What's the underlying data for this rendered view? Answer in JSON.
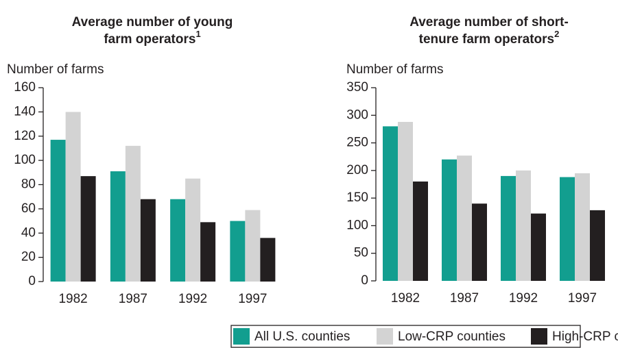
{
  "chart_data": [
    {
      "type": "bar",
      "title": [
        "Average number of young",
        "farm operators"
      ],
      "title_note": "1",
      "ylabel": "Number of farms",
      "categories": [
        "1982",
        "1987",
        "1992",
        "1997"
      ],
      "series": [
        {
          "name": "All U.S. counties",
          "color": "#129e8f",
          "values": [
            117,
            91,
            68,
            50
          ]
        },
        {
          "name": "Low-CRP counties",
          "color": "#d3d3d3",
          "values": [
            140,
            112,
            85,
            59
          ]
        },
        {
          "name": "High-CRP counties",
          "color": "#231f20",
          "values": [
            87,
            68,
            49,
            36
          ]
        }
      ],
      "ylim": [
        0,
        160
      ],
      "yticks": [
        0,
        20,
        40,
        60,
        80,
        100,
        120,
        140,
        160
      ]
    },
    {
      "type": "bar",
      "title": [
        "Average number of short-",
        "tenure farm operators"
      ],
      "title_note": "2",
      "ylabel": "Number of farms",
      "categories": [
        "1982",
        "1987",
        "1992",
        "1997"
      ],
      "series": [
        {
          "name": "All U.S. counties",
          "color": "#129e8f",
          "values": [
            280,
            220,
            190,
            188
          ]
        },
        {
          "name": "Low-CRP counties",
          "color": "#d3d3d3",
          "values": [
            288,
            227,
            200,
            195
          ]
        },
        {
          "name": "High-CRP counties",
          "color": "#231f20",
          "values": [
            180,
            140,
            122,
            128
          ]
        }
      ],
      "ylim": [
        0,
        350
      ],
      "yticks": [
        0,
        50,
        100,
        150,
        200,
        250,
        300,
        350
      ]
    }
  ]
}
